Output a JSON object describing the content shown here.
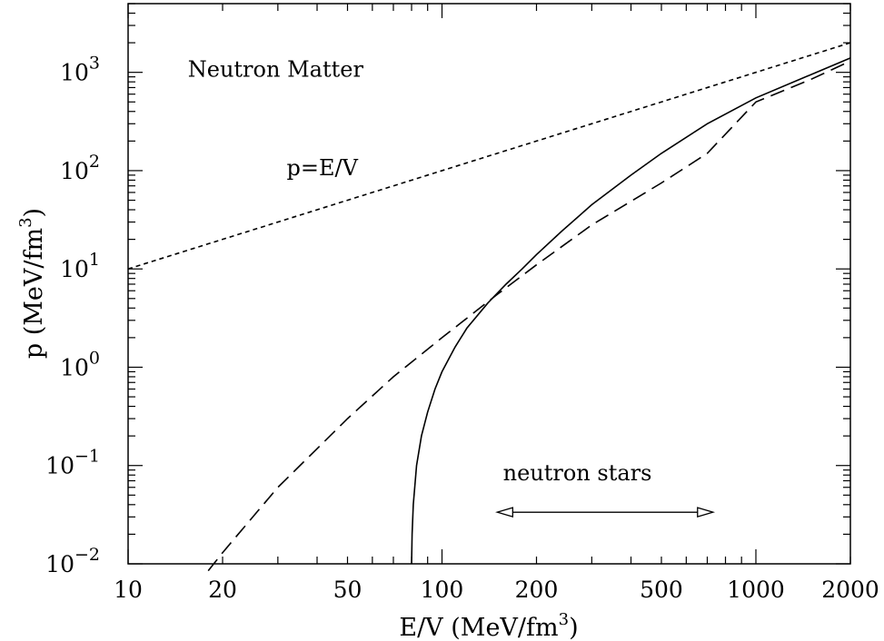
{
  "chart_data": {
    "type": "line",
    "title": "",
    "xlabel": "E/V (MeV/fm",
    "xlabel_sup": "3",
    "xlabel_tail": ")",
    "ylabel": "p (MeV/fm",
    "ylabel_sup": "3",
    "ylabel_tail": ")",
    "xscale": "log",
    "yscale": "log",
    "xlim": [
      10,
      2000
    ],
    "ylim": [
      0.01,
      5000
    ],
    "grid": false,
    "legend": "none",
    "x_ticks": [
      {
        "value": 10,
        "label": "10"
      },
      {
        "value": 20,
        "label": "20"
      },
      {
        "value": 50,
        "label": "50"
      },
      {
        "value": 100,
        "label": "100"
      },
      {
        "value": 200,
        "label": "200"
      },
      {
        "value": 500,
        "label": "500"
      },
      {
        "value": 1000,
        "label": "1000"
      },
      {
        "value": 2000,
        "label": "2000"
      }
    ],
    "y_ticks": [
      {
        "value": 0.01,
        "base": "10",
        "exp": "−2"
      },
      {
        "value": 0.1,
        "base": "10",
        "exp": "−1"
      },
      {
        "value": 1,
        "base": "10",
        "exp": "0"
      },
      {
        "value": 10,
        "base": "10",
        "exp": "1"
      },
      {
        "value": 100,
        "base": "10",
        "exp": "2"
      },
      {
        "value": 1000,
        "base": "10",
        "exp": "3"
      }
    ],
    "series": [
      {
        "style": "solid",
        "points": [
          [
            80,
            0.01
          ],
          [
            80.3,
            0.02
          ],
          [
            81,
            0.04
          ],
          [
            83,
            0.1
          ],
          [
            86,
            0.2
          ],
          [
            90,
            0.35
          ],
          [
            95,
            0.6
          ],
          [
            100,
            0.9
          ],
          [
            110,
            1.6
          ],
          [
            120,
            2.5
          ],
          [
            140,
            4.5
          ],
          [
            160,
            7
          ],
          [
            180,
            10
          ],
          [
            200,
            14
          ],
          [
            240,
            24
          ],
          [
            300,
            45
          ],
          [
            400,
            90
          ],
          [
            500,
            150
          ],
          [
            700,
            300
          ],
          [
            1000,
            550
          ],
          [
            1500,
            950
          ],
          [
            2000,
            1400
          ]
        ]
      },
      {
        "style": "long-dash",
        "points": [
          [
            18,
            0.0085
          ],
          [
            20,
            0.013
          ],
          [
            30,
            0.06
          ],
          [
            50,
            0.3
          ],
          [
            70,
            0.8
          ],
          [
            100,
            2
          ],
          [
            150,
            5.5
          ],
          [
            200,
            11
          ],
          [
            300,
            28
          ],
          [
            500,
            75
          ],
          [
            700,
            150
          ],
          [
            1000,
            500
          ],
          [
            1500,
            850
          ],
          [
            2000,
            1300
          ]
        ]
      },
      {
        "style": "short-dash",
        "points": [
          [
            10,
            10
          ],
          [
            2000,
            2000
          ]
        ]
      }
    ],
    "annotations": [
      {
        "text": "Neutron Matter",
        "x": 15.5,
        "y": 900
      },
      {
        "text": "p=E/V",
        "x": 32,
        "y": 90
      },
      {
        "text": "neutron stars",
        "x": 270,
        "y": 0.071
      },
      {
        "arrow": "double",
        "from": 150,
        "to": 730,
        "y": 0.0335
      }
    ]
  }
}
